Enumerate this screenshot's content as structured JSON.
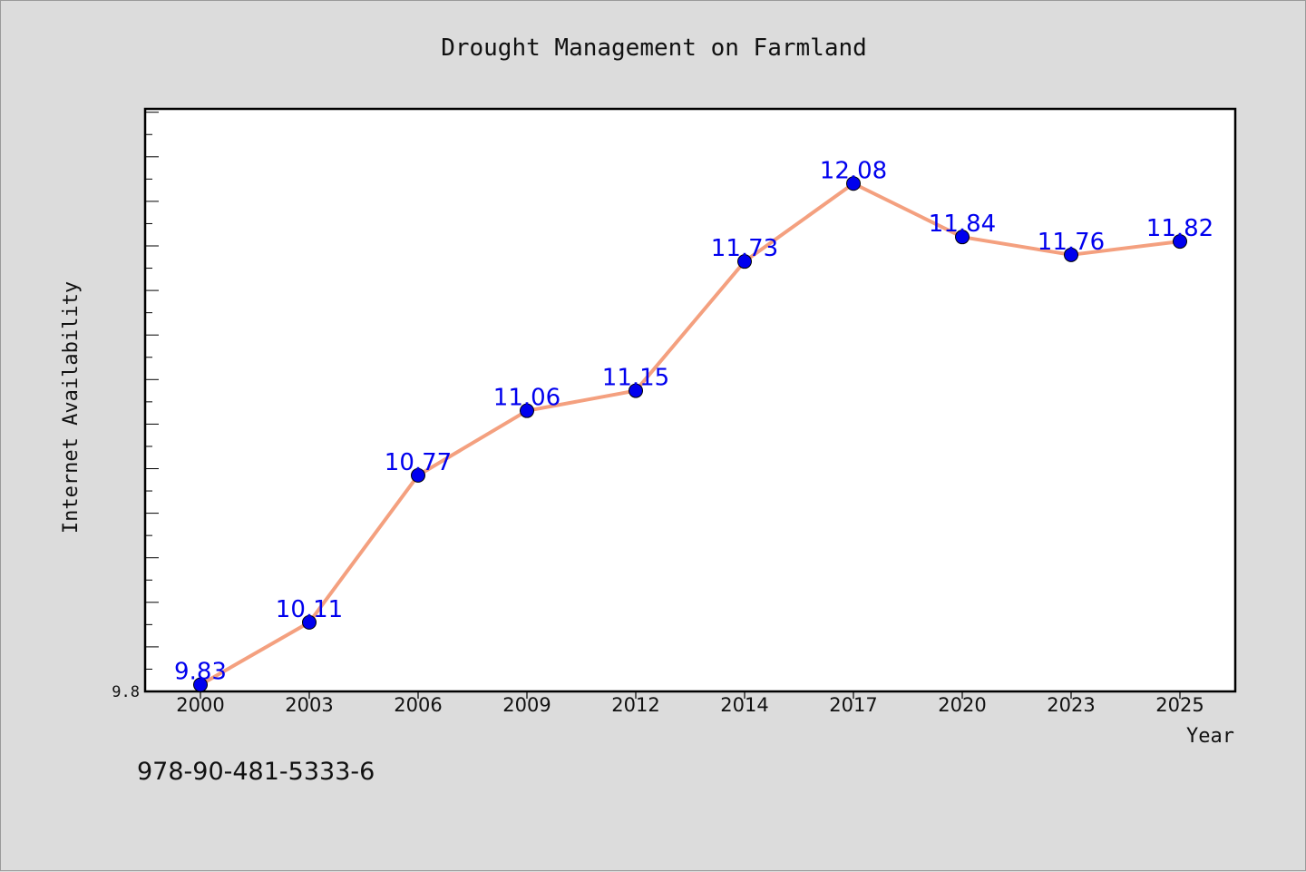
{
  "chart_data": {
    "type": "line",
    "title": "Drought Management on Farmland",
    "xlabel": "Year",
    "ylabel": "Internet Availability",
    "categories": [
      "2000",
      "2003",
      "2006",
      "2009",
      "2012",
      "2014",
      "2017",
      "2020",
      "2023",
      "2025"
    ],
    "series": [
      {
        "values": [
          9.83,
          10.11,
          10.77,
          11.06,
          11.15,
          11.73,
          12.08,
          11.84,
          11.76,
          11.82
        ],
        "line_color": "#f4a07f",
        "marker_color": "#0000ee",
        "label_color": "#0000ee"
      }
    ],
    "ylim": [
      9.8,
      12.41
    ],
    "y_tick_labels": [
      "9.8"
    ],
    "grid": false,
    "legend": "none"
  },
  "footer": {
    "isbn": "978-90-481-5333-6"
  }
}
